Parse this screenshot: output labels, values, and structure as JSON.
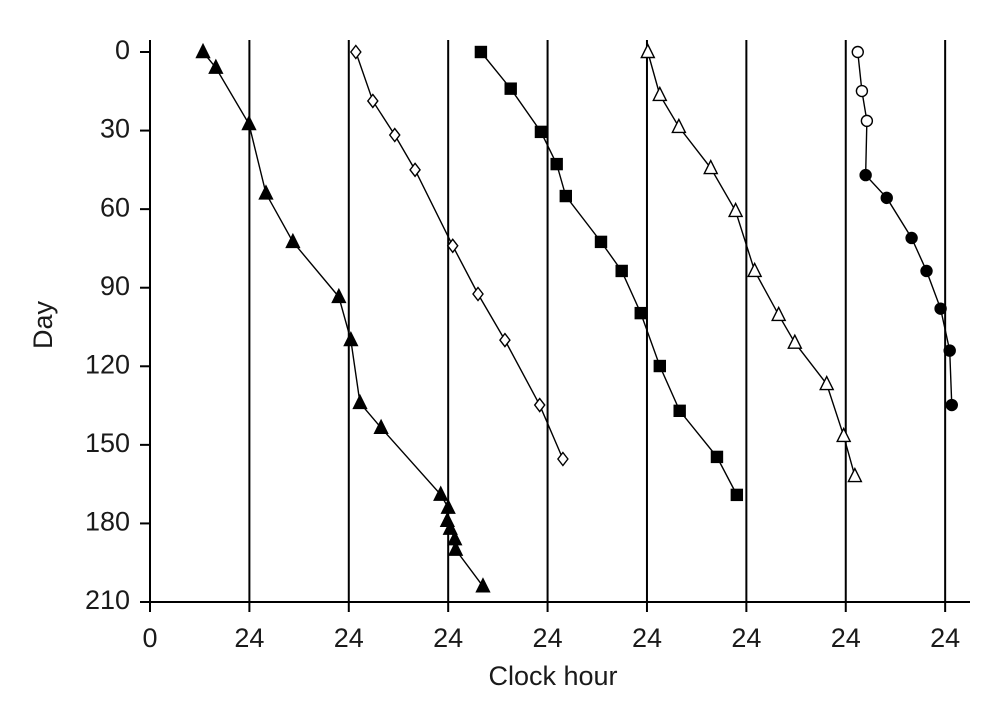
{
  "chart_data": {
    "type": "line",
    "xlabel": "Clock hour",
    "ylabel": "Day",
    "xlim": [
      0,
      198
    ],
    "ylim": [
      0,
      210
    ],
    "y_inverted": true,
    "grid": true,
    "xticks": [
      0,
      24,
      {
        "value": 48,
        "label": "24"
      },
      {
        "value": 72,
        "label": "24"
      },
      {
        "value": 96,
        "label": "24"
      },
      {
        "value": 120,
        "label": "24"
      },
      {
        "value": 144,
        "label": "24"
      },
      {
        "value": 168,
        "label": "24"
      },
      {
        "value": 192,
        "label": "24"
      }
    ],
    "yticks": [
      0,
      30,
      60,
      90,
      120,
      150,
      180,
      210
    ],
    "series": [
      {
        "marker": "triangle",
        "filled": true,
        "color": "#000000",
        "x": [
          12.8,
          15.9,
          23.9,
          28.0,
          34.5,
          45.6,
          48.5,
          50.7,
          55.8,
          70.2,
          72.0,
          71.8,
          72.5,
          73.6,
          73.8,
          80.4
        ],
        "values": [
          0,
          6,
          27.5,
          54,
          72.5,
          93.5,
          110,
          134,
          143.5,
          169,
          174,
          179,
          182,
          186,
          190,
          204
        ]
      },
      {
        "marker": "diamond",
        "filled": false,
        "color": "#000000",
        "x": [
          49.7,
          53.8,
          59.1,
          64.0,
          73.1,
          79.2,
          85.7,
          94.1,
          99.7
        ],
        "values": [
          0,
          18.7,
          31.7,
          45,
          74,
          92.4,
          110,
          134.8,
          155.4
        ]
      },
      {
        "marker": "square",
        "filled": true,
        "color": "#000000",
        "x": [
          79.9,
          87.1,
          94.4,
          98.2,
          100.4,
          108.9,
          113.9,
          118.5,
          123.1,
          127.9,
          136.9,
          141.7
        ],
        "values": [
          0,
          14,
          30.5,
          42.8,
          55,
          72.5,
          83.6,
          99.7,
          119.9,
          137,
          154.6,
          169.1
        ]
      },
      {
        "marker": "triangle",
        "filled": false,
        "color": "#000000",
        "x": [
          120.2,
          123.1,
          127.7,
          135.4,
          141.4,
          146.0,
          151.8,
          155.7,
          163.4,
          167.5,
          170.2
        ],
        "values": [
          0,
          16.4,
          28.6,
          44.3,
          60.7,
          83.6,
          100.4,
          111,
          126.8,
          146.6,
          161.9
        ]
      },
      {
        "marker": "circle",
        "filled": [
          false,
          false,
          false,
          true,
          true,
          true,
          true,
          true,
          true,
          true
        ],
        "color": "#000000",
        "x": [
          170.9,
          171.9,
          173.1,
          172.8,
          177.9,
          183.9,
          187.5,
          190.9,
          193.1,
          193.6
        ],
        "values": [
          0,
          14.9,
          26.3,
          47,
          55.7,
          71,
          83.6,
          98,
          114,
          134.8
        ]
      }
    ]
  }
}
